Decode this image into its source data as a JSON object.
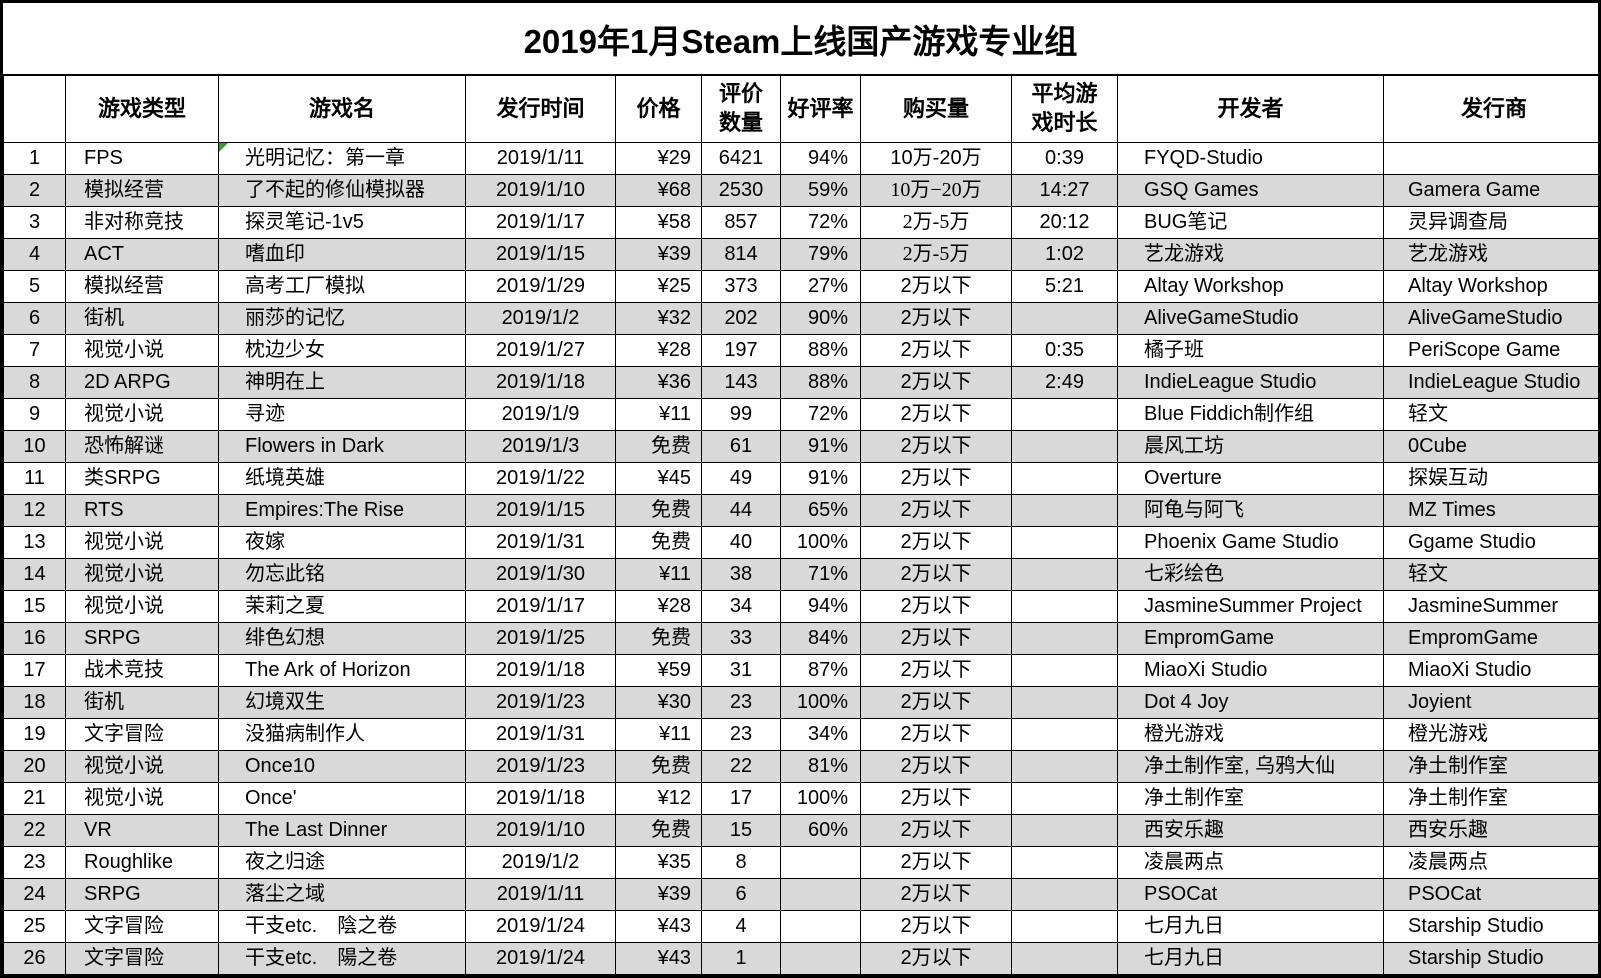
{
  "title": "2019年1月Steam上线国产游戏专业组",
  "columns": [
    "",
    "游戏类型",
    "游戏名",
    "发行时间",
    "价格",
    "评价数量",
    "好评率",
    "购买量",
    "平均游戏时长",
    "开发者",
    "发行商"
  ],
  "colors": {
    "stripe": "#d9d9d9",
    "flag_green": "#33a02c",
    "border": "#000000"
  },
  "rows": [
    {
      "no": "1",
      "type": "FPS",
      "name": "光明记忆：第一章",
      "date": "2019/1/11",
      "price": "¥29",
      "reviews": "6421",
      "rating": "94%",
      "buyers": "10万-20万",
      "playtime": "0:39",
      "dev": "FYQD-Studio",
      "pub": "",
      "flag": true
    },
    {
      "no": "2",
      "type": "模拟经营",
      "name": "了不起的修仙模拟器",
      "date": "2019/1/10",
      "price": "¥68",
      "reviews": "2530",
      "rating": "59%",
      "buyers": "10万−20万",
      "playtime": "14:27",
      "dev": "GSQ Games",
      "pub": "Gamera Game",
      "buy_serif": true
    },
    {
      "no": "3",
      "type": "非对称竞技",
      "name": "探灵笔记-1v5",
      "date": "2019/1/17",
      "price": "¥58",
      "reviews": "857",
      "rating": "72%",
      "buyers": "2万-5万",
      "playtime": "20:12",
      "dev": "BUG笔记",
      "pub": "灵异调查局",
      "buy_serif": true
    },
    {
      "no": "4",
      "type": "ACT",
      "name": "嗜血印",
      "date": "2019/1/15",
      "price": "¥39",
      "reviews": "814",
      "rating": "79%",
      "buyers": "2万-5万",
      "playtime": "1:02",
      "dev": "艺龙游戏",
      "pub": "艺龙游戏",
      "buy_serif": true
    },
    {
      "no": "5",
      "type": "模拟经营",
      "name": "高考工厂模拟",
      "date": "2019/1/29",
      "price": "¥25",
      "reviews": "373",
      "rating": "27%",
      "buyers": "2万以下",
      "playtime": "5:21",
      "dev": "Altay Workshop",
      "pub": "Altay Workshop"
    },
    {
      "no": "6",
      "type": "街机",
      "name": "丽莎的记忆",
      "date": "2019/1/2",
      "price": "¥32",
      "reviews": "202",
      "rating": "90%",
      "buyers": "2万以下",
      "playtime": "",
      "dev": "AliveGameStudio",
      "pub": "AliveGameStudio"
    },
    {
      "no": "7",
      "type": "视觉小说",
      "name": "枕边少女",
      "date": "2019/1/27",
      "price": "¥28",
      "reviews": "197",
      "rating": "88%",
      "buyers": "2万以下",
      "playtime": "0:35",
      "dev": "橘子班",
      "pub": "PeriScope Game"
    },
    {
      "no": "8",
      "type": "2D ARPG",
      "name": "神明在上",
      "date": "2019/1/18",
      "price": "¥36",
      "reviews": "143",
      "rating": "88%",
      "buyers": "2万以下",
      "playtime": "2:49",
      "dev": "IndieLeague Studio",
      "pub": "IndieLeague Studio"
    },
    {
      "no": "9",
      "type": "视觉小说",
      "name": "寻迹",
      "date": "2019/1/9",
      "price": "¥11",
      "reviews": "99",
      "rating": "72%",
      "buyers": "2万以下",
      "playtime": "",
      "dev": "Blue Fiddich制作组",
      "pub": "轻文"
    },
    {
      "no": "10",
      "type": "恐怖解谜",
      "name": "Flowers in Dark",
      "date": "2019/1/3",
      "price": "免费",
      "reviews": "61",
      "rating": "91%",
      "buyers": "2万以下",
      "playtime": "",
      "dev": "晨风工坊",
      "pub": "0Cube"
    },
    {
      "no": "11",
      "type": "类SRPG",
      "name": "纸境英雄",
      "date": "2019/1/22",
      "price": "¥45",
      "reviews": "49",
      "rating": "91%",
      "buyers": "2万以下",
      "playtime": "",
      "dev": "Overture",
      "pub": "探娱互动"
    },
    {
      "no": "12",
      "type": "RTS",
      "name": "Empires:The Rise",
      "date": "2019/1/15",
      "price": "免费",
      "reviews": "44",
      "rating": "65%",
      "buyers": "2万以下",
      "playtime": "",
      "dev": "阿龟与阿飞",
      "pub": "MZ Times"
    },
    {
      "no": "13",
      "type": "视觉小说",
      "name": "夜嫁",
      "date": "2019/1/31",
      "price": "免费",
      "reviews": "40",
      "rating": "100%",
      "buyers": "2万以下",
      "playtime": "",
      "dev": "Phoenix Game Studio",
      "pub": "Ggame Studio"
    },
    {
      "no": "14",
      "type": "视觉小说",
      "name": "勿忘此铭",
      "date": "2019/1/30",
      "price": "¥11",
      "reviews": "38",
      "rating": "71%",
      "buyers": "2万以下",
      "playtime": "",
      "dev": "七彩绘色",
      "pub": "轻文"
    },
    {
      "no": "15",
      "type": "视觉小说",
      "name": "茉莉之夏",
      "date": "2019/1/17",
      "price": "¥28",
      "reviews": "34",
      "rating": "94%",
      "buyers": "2万以下",
      "playtime": "",
      "dev": "JasmineSummer Project",
      "pub": "JasmineSummer"
    },
    {
      "no": "16",
      "type": "SRPG",
      "name": "绯色幻想",
      "date": "2019/1/25",
      "price": "免费",
      "reviews": "33",
      "rating": "84%",
      "buyers": "2万以下",
      "playtime": "",
      "dev": "EmpromGame",
      "pub": "EmpromGame"
    },
    {
      "no": "17",
      "type": "战术竞技",
      "name": "The Ark of Horizon",
      "date": "2019/1/18",
      "price": "¥59",
      "reviews": "31",
      "rating": "87%",
      "buyers": "2万以下",
      "playtime": "",
      "dev": "MiaoXi Studio",
      "pub": "MiaoXi Studio"
    },
    {
      "no": "18",
      "type": "街机",
      "name": "幻境双生",
      "date": "2019/1/23",
      "price": "¥30",
      "reviews": "23",
      "rating": "100%",
      "buyers": "2万以下",
      "playtime": "",
      "dev": "Dot 4 Joy",
      "pub": "Joyient"
    },
    {
      "no": "19",
      "type": "文字冒险",
      "name": "没猫病制作人",
      "date": "2019/1/31",
      "price": "¥11",
      "reviews": "23",
      "rating": "34%",
      "buyers": "2万以下",
      "playtime": "",
      "dev": "橙光游戏",
      "pub": "橙光游戏"
    },
    {
      "no": "20",
      "type": "视觉小说",
      "name": "Once10",
      "date": "2019/1/23",
      "price": "免费",
      "reviews": "22",
      "rating": "81%",
      "buyers": "2万以下",
      "playtime": "",
      "dev": "净土制作室, 乌鸦大仙",
      "pub": "净土制作室"
    },
    {
      "no": "21",
      "type": "视觉小说",
      "name": "Once'",
      "date": "2019/1/18",
      "price": "¥12",
      "reviews": "17",
      "rating": "100%",
      "buyers": "2万以下",
      "playtime": "",
      "dev": "净土制作室",
      "pub": "净土制作室"
    },
    {
      "no": "22",
      "type": "VR",
      "name": "The Last Dinner",
      "date": "2019/1/10",
      "price": "免费",
      "reviews": "15",
      "rating": "60%",
      "buyers": "2万以下",
      "playtime": "",
      "dev": "西安乐趣",
      "pub": "西安乐趣"
    },
    {
      "no": "23",
      "type": "Roughlike",
      "name": "夜之归途",
      "date": "2019/1/2",
      "price": "¥35",
      "reviews": "8",
      "rating": "",
      "buyers": "2万以下",
      "playtime": "",
      "dev": "凌晨两点",
      "pub": "凌晨两点"
    },
    {
      "no": "24",
      "type": "SRPG",
      "name": "落尘之域",
      "date": "2019/1/11",
      "price": "¥39",
      "reviews": "6",
      "rating": "",
      "buyers": "2万以下",
      "playtime": "",
      "dev": "PSOCat",
      "pub": "PSOCat"
    },
    {
      "no": "25",
      "type": "文字冒险",
      "name": "干支etc.　陰之卷",
      "date": "2019/1/24",
      "price": "¥43",
      "reviews": "4",
      "rating": "",
      "buyers": "2万以下",
      "playtime": "",
      "dev": "七月九日",
      "pub": "Starship Studio"
    },
    {
      "no": "26",
      "type": "文字冒险",
      "name": "干支etc.　陽之卷",
      "date": "2019/1/24",
      "price": "¥43",
      "reviews": "1",
      "rating": "",
      "buyers": "2万以下",
      "playtime": "",
      "dev": "七月九日",
      "pub": "Starship Studio"
    }
  ]
}
